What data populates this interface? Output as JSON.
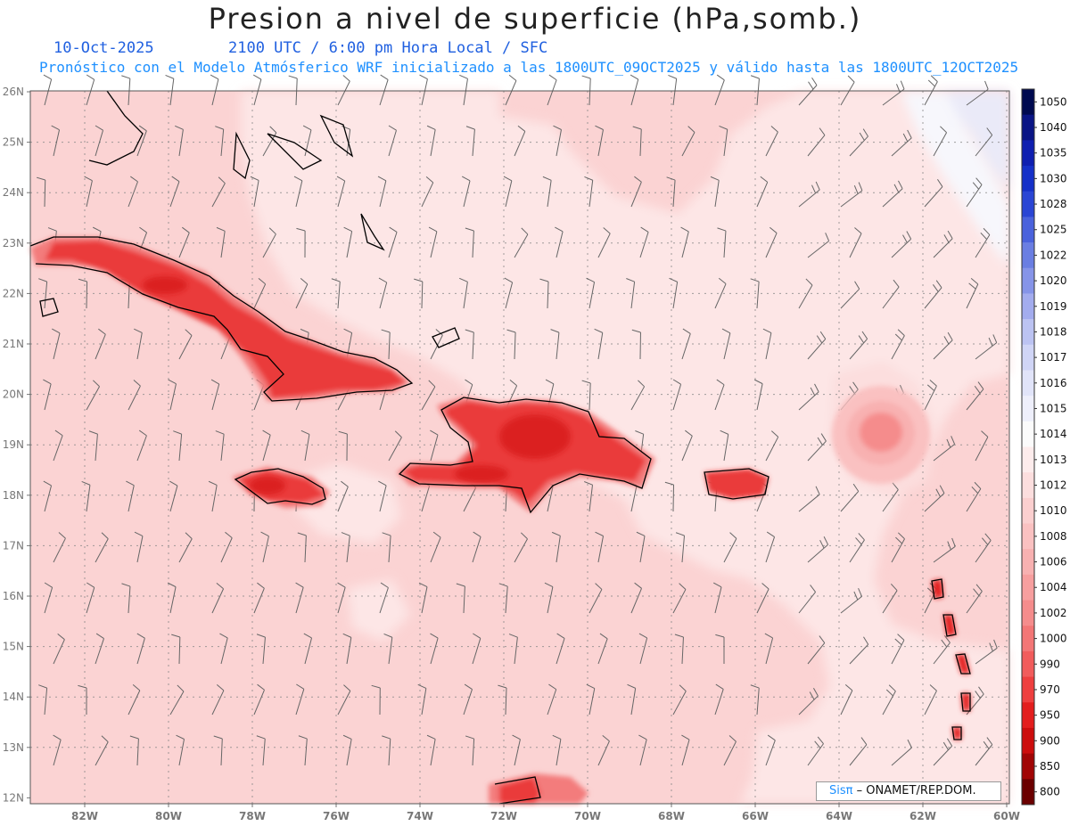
{
  "header": {
    "title": "Presion a nivel de superficie (hPa,somb.)",
    "date": "10-Oct-2025",
    "time": "2100 UTC / 6:00 pm Hora Local / SFC",
    "forecast": "Pronóstico con el Modelo Atmósferico WRF inicializado a las 1800UTC_09OCT2025 y válido hasta las  1800UTC_12OCT2025"
  },
  "map": {
    "lat_labels": [
      "26N",
      "25N",
      "24N",
      "23N",
      "22N",
      "21N",
      "20N",
      "19N",
      "18N",
      "17N",
      "16N",
      "15N",
      "14N",
      "13N",
      "12N"
    ],
    "lon_labels": [
      "82W",
      "80W",
      "78W",
      "76W",
      "74W",
      "72W",
      "70W",
      "68W",
      "66W",
      "64W",
      "62W",
      "60W"
    ],
    "background_color": "#fbd3d3",
    "light_region_color": "#fde6e6",
    "high_pressure_color": "#eaeaf8",
    "land_color": "#ea3a3a",
    "land_edge_color": "#f37b7b",
    "low_center_color": "#f08585"
  },
  "colorbar": {
    "labels": [
      "1050",
      "1040",
      "1035",
      "1030",
      "1028",
      "1025",
      "1022",
      "1020",
      "1019",
      "1018",
      "1017",
      "1016",
      "1015",
      "1014",
      "1013",
      "1012",
      "1010",
      "1008",
      "1006",
      "1004",
      "1002",
      "1000",
      "990",
      "970",
      "950",
      "900",
      "850",
      "800"
    ],
    "colors": [
      "#000a50",
      "#0a1585",
      "#0f1fb0",
      "#1530c8",
      "#2a45d4",
      "#4a62dc",
      "#6a7ee2",
      "#8694e8",
      "#a3acee",
      "#bcc3f2",
      "#d0d5f6",
      "#e1e4f9",
      "#eeeffb",
      "#fbfbfb",
      "#fdecec",
      "#fcdede",
      "#fbcfcf",
      "#fac1c1",
      "#f8b1b1",
      "#f79f9f",
      "#f58c8c",
      "#f37676",
      "#f15c5c",
      "#ee3f3f",
      "#e31e1e",
      "#cc0d0d",
      "#a10505",
      "#6b0000"
    ]
  },
  "credit": {
    "logo": "Sisπ",
    "org": "– ONAMET/REP.DOM."
  }
}
